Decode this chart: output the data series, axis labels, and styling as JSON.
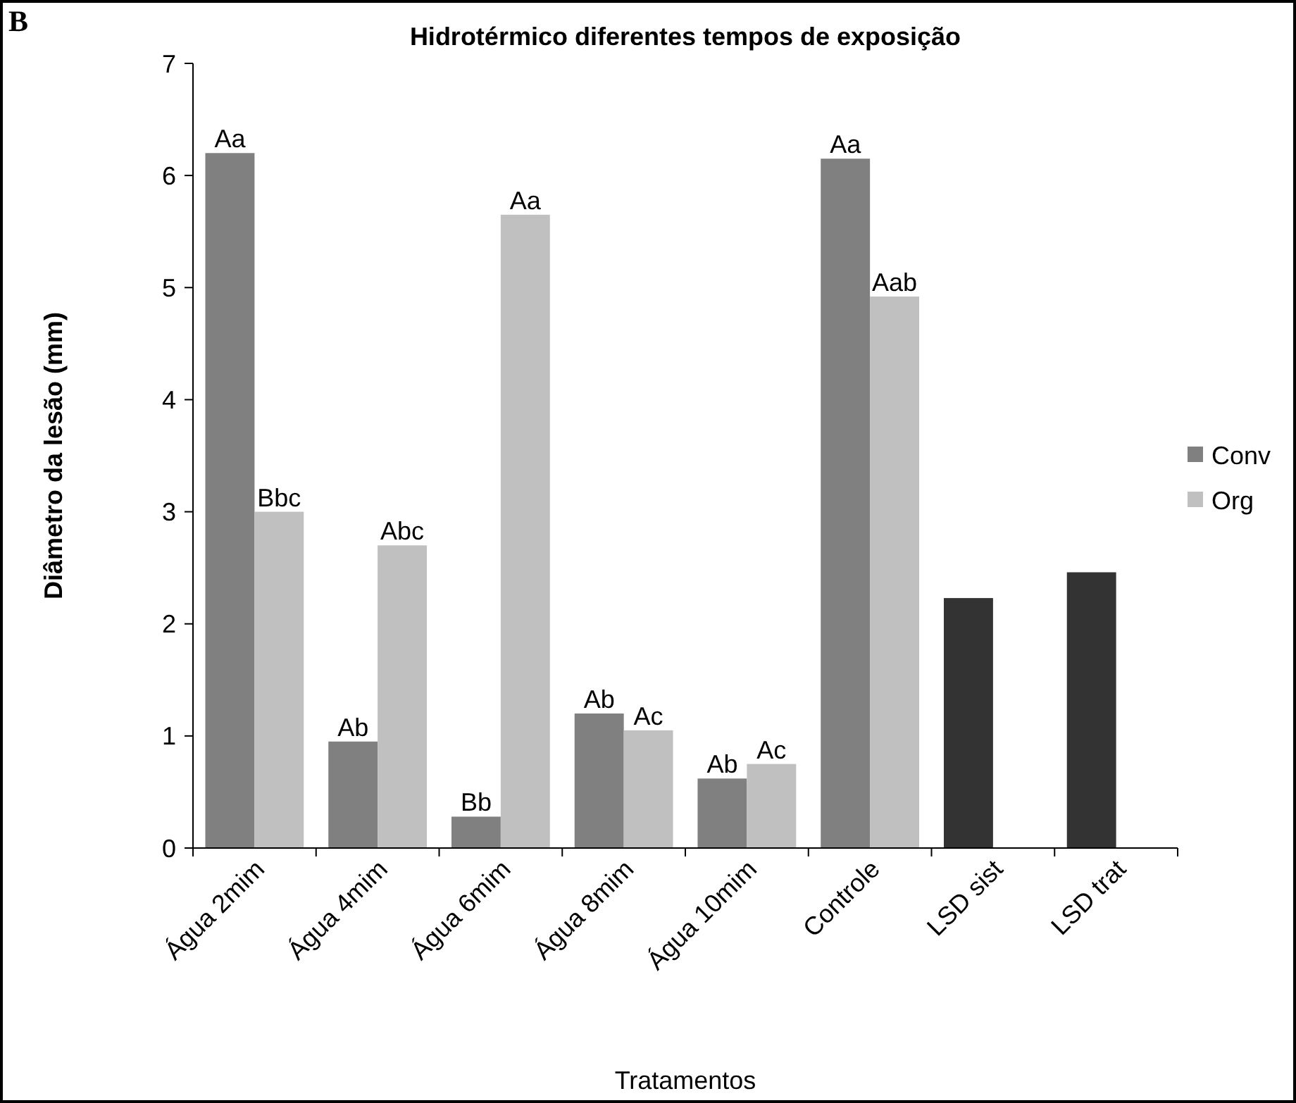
{
  "chart_data": {
    "type": "bar",
    "title": "Hidrotérmico diferentes tempos de exposição",
    "xlabel": "Tratamentos",
    "ylabel": "Diâmetro da lesão (mm)",
    "annotations": [
      "B"
    ],
    "categories": [
      "Água 2mim",
      "Água 4mim",
      "Água 6mim",
      "Água 8mim",
      "Água 10mim",
      "Controle",
      "LSD sist",
      "LSD trat"
    ],
    "series": [
      {
        "name": "Conv",
        "color": "#808080",
        "values": [
          6.2,
          0.95,
          0.28,
          1.2,
          0.62,
          6.15,
          null,
          null
        ],
        "value_labels": [
          "Aa",
          "Ab",
          "Bb",
          "Ab",
          "Ab",
          "Aa",
          null,
          null
        ]
      },
      {
        "name": "Org",
        "color": "#c0c0c0",
        "values": [
          3.0,
          2.7,
          5.65,
          1.05,
          0.75,
          4.92,
          null,
          null
        ],
        "value_labels": [
          "Bbc",
          "Abc",
          "Aa",
          "Ac",
          "Ac",
          "Aab",
          null,
          null
        ]
      },
      {
        "color": "#333333",
        "values": [
          null,
          null,
          null,
          null,
          null,
          null,
          2.23,
          2.46
        ]
      }
    ],
    "ylim": [
      0,
      7
    ],
    "yticks": [
      0,
      1,
      2,
      3,
      4,
      5,
      6,
      7
    ],
    "grid": false,
    "legend": "right"
  }
}
